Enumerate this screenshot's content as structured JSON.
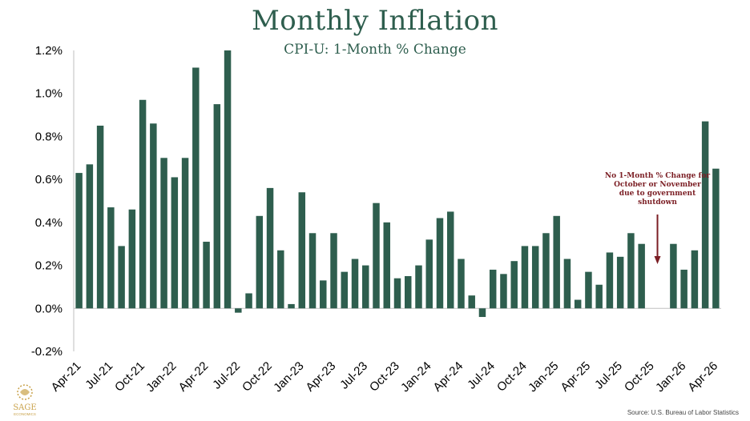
{
  "colors": {
    "bar": "#2e5e4e",
    "annotation": "#7b1e24",
    "logo": "#c9a24a"
  },
  "chart_data": {
    "type": "bar",
    "title": "Monthly Inflation",
    "subtitle": "CPI-U: 1-Month % Change",
    "xlabel": "",
    "ylabel": "",
    "ylim": [
      -0.2,
      1.2
    ],
    "y_ticks": [
      "-0.2%",
      "0.0%",
      "0.2%",
      "0.4%",
      "0.6%",
      "0.8%",
      "1.0%",
      "1.2%"
    ],
    "y_tick_values": [
      -0.2,
      0.0,
      0.2,
      0.4,
      0.6,
      0.8,
      1.0,
      1.2
    ],
    "x_tick_labels": [
      "Apr-21",
      "Jul-21",
      "Oct-21",
      "Jan-22",
      "Apr-22",
      "Jul-22",
      "Oct-22",
      "Jan-23",
      "Apr-23",
      "Jul-23",
      "Oct-23",
      "Jan-24",
      "Apr-24",
      "Jul-24",
      "Oct-24",
      "Jan-25",
      "Apr-25",
      "Jul-25",
      "Oct-25",
      "Jan-26",
      "Apr-26"
    ],
    "categories": [
      "Apr-21",
      "May-21",
      "Jun-21",
      "Jul-21",
      "Aug-21",
      "Sep-21",
      "Oct-21",
      "Nov-21",
      "Dec-21",
      "Jan-22",
      "Feb-22",
      "Mar-22",
      "Apr-22",
      "May-22",
      "Jun-22",
      "Jul-22",
      "Aug-22",
      "Sep-22",
      "Oct-22",
      "Nov-22",
      "Dec-22",
      "Jan-23",
      "Feb-23",
      "Mar-23",
      "Apr-23",
      "May-23",
      "Jun-23",
      "Jul-23",
      "Aug-23",
      "Sep-23",
      "Oct-23",
      "Nov-23",
      "Dec-23",
      "Jan-24",
      "Feb-24",
      "Mar-24",
      "Apr-24",
      "May-24",
      "Jun-24",
      "Jul-24",
      "Aug-24",
      "Sep-24",
      "Oct-24",
      "Nov-24",
      "Dec-24",
      "Jan-25",
      "Feb-25",
      "Mar-25",
      "Apr-25",
      "May-25",
      "Jun-25",
      "Jul-25",
      "Aug-25",
      "Sep-25",
      "Oct-25",
      "Nov-25",
      "Dec-25",
      "Jan-26",
      "Feb-26",
      "Mar-26",
      "Apr-26"
    ],
    "values": [
      0.63,
      0.67,
      0.85,
      0.47,
      0.29,
      0.46,
      0.97,
      0.86,
      0.7,
      0.61,
      0.7,
      1.12,
      0.31,
      0.95,
      1.2,
      -0.02,
      0.07,
      0.43,
      0.56,
      0.27,
      0.02,
      0.54,
      0.35,
      0.13,
      0.35,
      0.17,
      0.23,
      0.2,
      0.49,
      0.4,
      0.14,
      0.15,
      0.2,
      0.32,
      0.42,
      0.45,
      0.23,
      0.06,
      -0.04,
      0.18,
      0.16,
      0.22,
      0.29,
      0.29,
      0.35,
      0.43,
      0.23,
      0.04,
      0.17,
      0.11,
      0.26,
      0.24,
      0.35,
      0.3,
      null,
      null,
      0.3,
      0.18,
      0.27,
      0.87,
      0.65
    ],
    "annotation": {
      "lines": [
        "No 1-Month % Change for",
        "October or November",
        "due to government",
        "shutdown"
      ]
    },
    "grid": false
  },
  "source": "Source: U.S. Bureau of Labor Statistics",
  "logo_text": {
    "brand": "SAGE",
    "sub": "ECONOMICS"
  }
}
